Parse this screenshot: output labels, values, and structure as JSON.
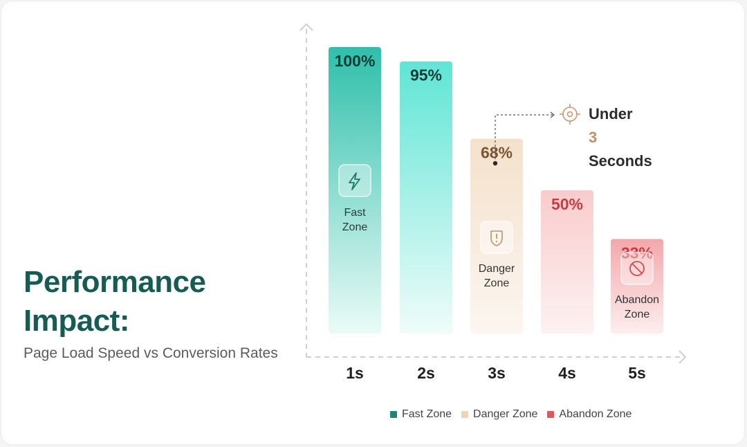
{
  "title_line1": "Performance",
  "title_line2": "Impact:",
  "subtitle": "Page Load Speed vs Conversion Rates",
  "callout": {
    "prefix": "Under ",
    "number": "3",
    "line2": "Seconds"
  },
  "colors": {
    "fast": "#1e8677",
    "danger": "#edd5bb",
    "abandon": "#e05858",
    "title": "#175c53"
  },
  "zones": [
    {
      "name": "Fast Zone",
      "line1": "Fast",
      "line2": "Zone",
      "icon": "lightning-icon"
    },
    {
      "name": "Danger Zone",
      "line1": "Danger",
      "line2": "Zone",
      "icon": "warning-shield-icon"
    },
    {
      "name": "Abandon Zone",
      "line1": "Abandon",
      "line2": "Zone",
      "icon": "prohibited-icon"
    }
  ],
  "legend": [
    {
      "label": "Fast Zone",
      "color": "#1e8677"
    },
    {
      "label": "Danger Zone",
      "color": "#edd5bb"
    },
    {
      "label": "Abandon Zone",
      "color": "#e05858"
    }
  ],
  "chart_data": {
    "type": "bar",
    "categories": [
      "1s",
      "2s",
      "3s",
      "4s",
      "5s"
    ],
    "values": [
      100,
      95,
      68,
      50,
      33
    ],
    "value_labels": [
      "100%",
      "95%",
      "68%",
      "50%",
      "33%"
    ],
    "zones": [
      "fast",
      "fast",
      "danger",
      "abandon",
      "abandon"
    ],
    "ylim": [
      0,
      100
    ],
    "grid": false
  }
}
